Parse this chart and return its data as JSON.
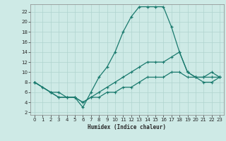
{
  "xlabel": "Humidex (Indice chaleur)",
  "bg_color": "#ceeae6",
  "grid_color": "#afd4ce",
  "line_color": "#1a7a6e",
  "xlim": [
    -0.5,
    23.5
  ],
  "ylim": [
    1.5,
    23.5
  ],
  "xticks": [
    0,
    1,
    2,
    3,
    4,
    5,
    6,
    7,
    8,
    9,
    10,
    11,
    12,
    13,
    14,
    15,
    16,
    17,
    18,
    19,
    20,
    21,
    22,
    23
  ],
  "yticks": [
    2,
    4,
    6,
    8,
    10,
    12,
    14,
    16,
    18,
    20,
    22
  ],
  "series1_x": [
    0,
    1,
    2,
    3,
    4,
    5,
    6,
    7,
    8,
    9,
    10,
    11,
    12,
    13,
    14,
    15,
    16,
    17,
    18,
    19,
    20,
    21,
    22,
    23
  ],
  "series1_y": [
    8,
    7,
    6,
    6,
    5,
    5,
    3,
    6,
    9,
    11,
    14,
    18,
    21,
    23,
    23,
    23,
    23,
    19,
    14,
    10,
    9,
    9,
    9,
    9
  ],
  "series2_x": [
    0,
    2,
    3,
    4,
    5,
    6,
    7,
    8,
    9,
    10,
    11,
    12,
    13,
    14,
    15,
    16,
    17,
    18,
    19,
    20,
    21,
    22,
    23
  ],
  "series2_y": [
    8,
    6,
    5,
    5,
    5,
    4,
    5,
    6,
    7,
    8,
    9,
    10,
    11,
    12,
    12,
    12,
    13,
    14,
    10,
    9,
    9,
    10,
    9
  ],
  "series3_x": [
    0,
    2,
    3,
    4,
    5,
    6,
    7,
    8,
    9,
    10,
    11,
    12,
    13,
    14,
    15,
    16,
    17,
    18,
    19,
    20,
    21,
    22,
    23
  ],
  "series3_y": [
    8,
    6,
    5,
    5,
    5,
    4,
    5,
    5,
    6,
    6,
    7,
    7,
    8,
    9,
    9,
    9,
    10,
    10,
    9,
    9,
    8,
    8,
    9
  ]
}
